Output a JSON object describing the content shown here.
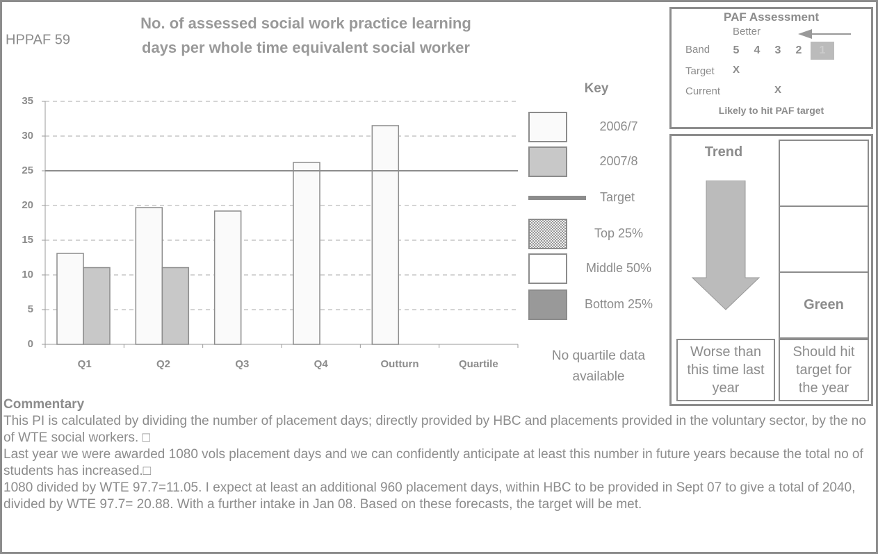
{
  "header": {
    "code": "HPPAF 59"
  },
  "chart_data": {
    "type": "bar",
    "title": [
      "No. of assessed social work practice learning",
      "days per whole time equivalent social worker"
    ],
    "categories": [
      "Q1",
      "Q2",
      "Q3",
      "Q4",
      "Outturn",
      "Quartile"
    ],
    "series": [
      {
        "name": "2006/7",
        "color": "#fafafa",
        "values": [
          13.1,
          19.7,
          19.2,
          26.2,
          31.5,
          null
        ]
      },
      {
        "name": "2007/8",
        "color": "#c8c8c8",
        "values": [
          11.05,
          11.05,
          null,
          null,
          null,
          null
        ]
      }
    ],
    "target": {
      "name": "Target",
      "value": 25,
      "color": "#8c8c8c"
    },
    "ylim": [
      0,
      35
    ],
    "yticks": [
      0,
      5,
      10,
      15,
      20,
      25,
      30,
      35
    ],
    "grid": true,
    "legend_title": "Key",
    "quartile_key": [
      {
        "name": "Top 25%",
        "color": "pattern"
      },
      {
        "name": "Middle 50%",
        "color": "#ffffff"
      },
      {
        "name": "Bottom 25%",
        "color": "#999999"
      }
    ],
    "note": "No quartile data available"
  },
  "paf": {
    "title": "PAF Assessment",
    "direction": "Better",
    "band_label": "Band",
    "bands": [
      5,
      4,
      3,
      2,
      1
    ],
    "highlight_band": 1,
    "target_label": "Target",
    "target_mark": "X",
    "target_band": 5,
    "current_label": "Current",
    "current_mark": "X",
    "current_band": 3,
    "status": "Likely to hit PAF target"
  },
  "trend": {
    "title": "Trend",
    "rag": "Green",
    "trend_text": "Worse than this time last year",
    "forecast_text": "Should hit target for the year"
  },
  "commentary": {
    "heading": "Commentary",
    "paragraphs": [
      "This PI is calculated by dividing the number of placement days; directly provided by HBC and placements provided in the voluntary sector, by the no of WTE social workers. □",
      "Last year we were awarded 1080 vols placement days and we can confidently anticipate at least this number in future years because the total no of students has increased.□",
      "1080 divided by WTE 97.7=11.05. I expect at least an additional 960 placement days, within HBC to be provided in Sept 07 to give a total of 2040, divided by WTE 97.7= 20.88. With a further intake in Jan 08. Based on these forecasts, the target will be met."
    ]
  }
}
